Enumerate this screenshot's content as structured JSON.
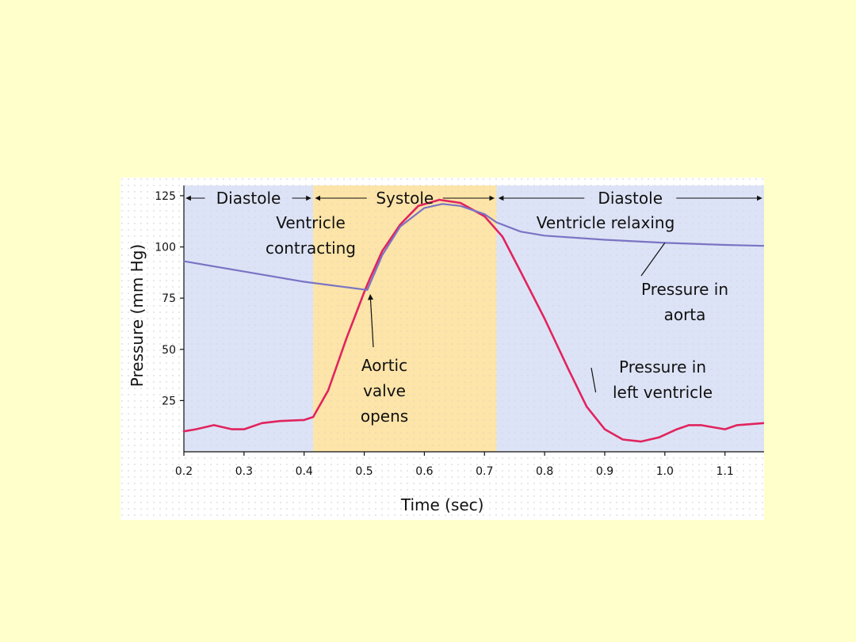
{
  "chart_data": {
    "type": "line",
    "title": "",
    "xlabel": "Time (sec)",
    "ylabel": "Pressure (mm Hg)",
    "xlim": [
      0.2,
      1.165
    ],
    "ylim": [
      0,
      130
    ],
    "x_ticks": [
      "0.2",
      "0.3",
      "0.4",
      "0.5",
      "0.6",
      "0.7",
      "0.8",
      "0.9",
      "1.0",
      "1.1"
    ],
    "y_ticks": [
      "25",
      "50",
      "75",
      "100",
      "125"
    ],
    "grid": true,
    "phases": [
      {
        "name": "Diastole",
        "start": 0.2,
        "end": 0.415,
        "color": "#dde3f6",
        "description": "",
        "arrow_left": true
      },
      {
        "name": "Systole",
        "start": 0.415,
        "end": 0.72,
        "color": "#fde4a8",
        "description": "Ventricle contracting",
        "arrow_left": true
      },
      {
        "name": "Diastole",
        "start": 0.72,
        "end": 1.165,
        "color": "#dde3f6",
        "description": "Ventricle relaxing",
        "arrow_left": true
      }
    ],
    "series": [
      {
        "name": "Pressure in left ventricle",
        "color": "#e0245e",
        "points": [
          [
            0.2,
            10
          ],
          [
            0.22,
            11
          ],
          [
            0.25,
            13
          ],
          [
            0.28,
            11
          ],
          [
            0.3,
            11
          ],
          [
            0.33,
            14
          ],
          [
            0.36,
            15
          ],
          [
            0.4,
            15.5
          ],
          [
            0.415,
            17
          ],
          [
            0.44,
            30
          ],
          [
            0.47,
            55
          ],
          [
            0.5,
            78
          ],
          [
            0.51,
            85
          ],
          [
            0.53,
            98
          ],
          [
            0.56,
            111
          ],
          [
            0.59,
            120
          ],
          [
            0.625,
            123
          ],
          [
            0.66,
            121.5
          ],
          [
            0.7,
            115
          ],
          [
            0.73,
            105
          ],
          [
            0.76,
            88
          ],
          [
            0.8,
            65
          ],
          [
            0.84,
            40
          ],
          [
            0.87,
            22
          ],
          [
            0.9,
            11
          ],
          [
            0.93,
            6
          ],
          [
            0.96,
            5
          ],
          [
            0.99,
            7
          ],
          [
            1.02,
            11
          ],
          [
            1.04,
            13
          ],
          [
            1.06,
            13
          ],
          [
            1.08,
            12
          ],
          [
            1.1,
            11
          ],
          [
            1.12,
            13
          ],
          [
            1.165,
            14
          ]
        ]
      },
      {
        "name": "Pressure in aorta",
        "color": "#7a74c4",
        "points": [
          [
            0.2,
            93
          ],
          [
            0.3,
            88
          ],
          [
            0.4,
            83
          ],
          [
            0.505,
            79
          ],
          [
            0.53,
            96
          ],
          [
            0.56,
            110
          ],
          [
            0.6,
            119
          ],
          [
            0.63,
            121
          ],
          [
            0.66,
            120
          ],
          [
            0.7,
            116
          ],
          [
            0.72,
            112
          ],
          [
            0.76,
            107.5
          ],
          [
            0.8,
            105.5
          ],
          [
            0.9,
            103.5
          ],
          [
            1.0,
            102
          ],
          [
            1.1,
            101
          ],
          [
            1.165,
            100.5
          ]
        ]
      }
    ],
    "annotations": [
      {
        "text_lines": [
          "Ventricle",
          "contracting"
        ],
        "points_to": null
      },
      {
        "text_lines": [
          "Ventricle relaxing"
        ],
        "points_to": null
      },
      {
        "text_lines": [
          "Aortic",
          "valve",
          "opens"
        ],
        "points_to": [
          0.51,
          79
        ]
      },
      {
        "text_lines": [
          "Pressure in",
          "aorta"
        ],
        "points_to": [
          1.0,
          102
        ]
      },
      {
        "text_lines": [
          "Pressure in",
          "left ventricle"
        ],
        "points_to": [
          0.885,
          29
        ]
      }
    ]
  }
}
